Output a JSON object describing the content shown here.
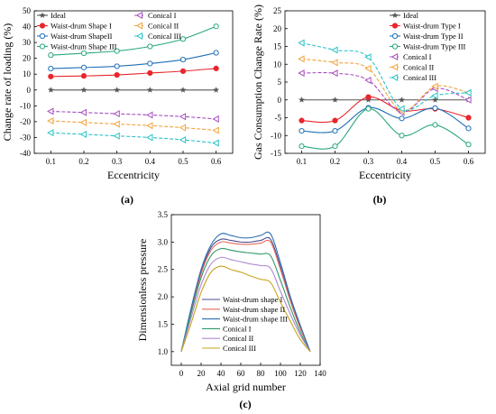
{
  "chart_data": [
    {
      "id": "a",
      "type": "line",
      "panel_label": "(a)",
      "xlabel": "Eccentricity",
      "ylabel": "Change rate of loading (%)",
      "x": [
        0.1,
        0.2,
        0.3,
        0.4,
        0.5,
        0.6
      ],
      "xlim": [
        0.05,
        0.65
      ],
      "ylim": [
        -40,
        50
      ],
      "yticks": [
        -40,
        -30,
        -20,
        -10,
        0,
        10,
        20,
        30,
        40,
        50
      ],
      "xticks": [
        0.1,
        0.2,
        0.3,
        0.4,
        0.5,
        0.6
      ],
      "legend_position": "top-left",
      "series": [
        {
          "name": "Ideal",
          "color": "#555555",
          "marker": "star",
          "dash": false,
          "values": [
            0,
            0,
            0,
            0,
            0,
            0
          ]
        },
        {
          "name": "Waist-drum Shape I",
          "color": "#e8262c",
          "marker": "circle-filled",
          "dash": false,
          "values": [
            8.5,
            8.9,
            9.5,
            10.7,
            11.9,
            13.6
          ]
        },
        {
          "name": "Waist-drum ShapeII",
          "color": "#1f6fb6",
          "marker": "circle-open",
          "dash": false,
          "values": [
            13.5,
            14.2,
            15.0,
            16.7,
            19.2,
            23.5
          ]
        },
        {
          "name": "Waist-drum Shape III",
          "color": "#2aa87e",
          "marker": "circle-open",
          "dash": false,
          "values": [
            22.0,
            23.2,
            24.6,
            27.5,
            32.2,
            40.2
          ]
        },
        {
          "name": "Conical I",
          "color": "#a64fbf",
          "marker": "tri-left",
          "dash": true,
          "values": [
            -13.5,
            -14.2,
            -15.0,
            -15.8,
            -16.8,
            -18.3
          ]
        },
        {
          "name": "Conical II",
          "color": "#f1a33b",
          "marker": "tri-left",
          "dash": true,
          "values": [
            -19.5,
            -20.5,
            -21.5,
            -22.5,
            -23.8,
            -25.5
          ]
        },
        {
          "name": "Conical III",
          "color": "#2ac2c7",
          "marker": "tri-left",
          "dash": true,
          "values": [
            -27.0,
            -28.0,
            -29.0,
            -30.0,
            -31.5,
            -33.5
          ]
        }
      ]
    },
    {
      "id": "b",
      "type": "line",
      "panel_label": "(b)",
      "xlabel": "Eccentricity",
      "ylabel": "Gas Consumption Change Rate (%)",
      "x": [
        0.1,
        0.2,
        0.3,
        0.4,
        0.5,
        0.6
      ],
      "xlim": [
        0.05,
        0.65
      ],
      "ylim": [
        -15,
        25
      ],
      "yticks": [
        -15,
        -10,
        -5,
        0,
        5,
        10,
        15,
        20,
        25
      ],
      "xticks": [
        0.1,
        0.2,
        0.3,
        0.4,
        0.5,
        0.6
      ],
      "legend_position": "top-right",
      "series": [
        {
          "name": "Ideal",
          "color": "#555555",
          "marker": "star",
          "dash": false,
          "values": [
            0,
            0,
            0,
            0,
            0,
            0
          ]
        },
        {
          "name": "Waist-drum Type I",
          "color": "#e8262c",
          "marker": "circle-filled",
          "dash": false,
          "values": [
            -5.8,
            -5.8,
            0.8,
            -3.0,
            -2.5,
            -5.0
          ]
        },
        {
          "name": "Waist-drum Type II",
          "color": "#1f6fb6",
          "marker": "circle-open",
          "dash": false,
          "values": [
            -8.7,
            -8.7,
            -2.2,
            -5.2,
            -2.3,
            -8.0
          ]
        },
        {
          "name": "Waist-drum Type III",
          "color": "#2aa87e",
          "marker": "circle-open",
          "dash": false,
          "values": [
            -13.0,
            -13.0,
            -2.5,
            -10.0,
            -7.0,
            -12.5
          ]
        },
        {
          "name": "Conical I",
          "color": "#a64fbf",
          "marker": "tri-left",
          "dash": true,
          "values": [
            7.5,
            7.5,
            5.5,
            -3.5,
            3.2,
            0.0
          ]
        },
        {
          "name": "Conical II",
          "color": "#f1a33b",
          "marker": "tri-left",
          "dash": true,
          "values": [
            11.5,
            10.5,
            8.8,
            -3.0,
            3.8,
            2.0
          ]
        },
        {
          "name": "Conical III",
          "color": "#2ac2c7",
          "marker": "tri-left",
          "dash": true,
          "values": [
            16.0,
            14.0,
            12.0,
            -2.5,
            1.2,
            2.0
          ]
        }
      ]
    },
    {
      "id": "c",
      "type": "line",
      "panel_label": "(c)",
      "xlabel": "Axial grid number",
      "ylabel": "Dimensionless pressure",
      "xlim": [
        -10,
        140
      ],
      "ylim": [
        0.75,
        3.5
      ],
      "xticks": [
        0,
        20,
        40,
        60,
        80,
        100,
        120,
        140
      ],
      "yticks": [
        1.0,
        1.5,
        2.0,
        2.5,
        3.0,
        3.5
      ],
      "legend_position": "bottom-right",
      "series": [
        {
          "name": "Waist-drum shape I",
          "color": "#4a4f8c",
          "x": [
            0,
            10,
            20,
            30,
            40,
            50,
            60,
            70,
            80,
            90,
            100,
            110,
            120,
            130
          ],
          "values": [
            1.0,
            1.75,
            2.45,
            2.9,
            3.05,
            3.03,
            3.0,
            3.0,
            3.03,
            3.05,
            2.55,
            1.95,
            1.45,
            1.0
          ]
        },
        {
          "name": "Waist-drum shape II",
          "color": "#e86a5c",
          "x": [
            0,
            10,
            20,
            30,
            40,
            50,
            60,
            70,
            80,
            90,
            100,
            110,
            120,
            130
          ],
          "values": [
            1.0,
            1.72,
            2.42,
            2.85,
            3.0,
            2.98,
            2.96,
            2.96,
            2.98,
            3.0,
            2.5,
            1.92,
            1.42,
            1.0
          ]
        },
        {
          "name": "Waist-drum shape III",
          "color": "#2f70b4",
          "x": [
            0,
            10,
            20,
            30,
            40,
            50,
            60,
            70,
            80,
            90,
            100,
            110,
            120,
            130
          ],
          "values": [
            1.0,
            1.8,
            2.5,
            2.95,
            3.15,
            3.12,
            3.08,
            3.08,
            3.12,
            3.15,
            2.62,
            2.0,
            1.48,
            1.0
          ]
        },
        {
          "name": "Conical I",
          "color": "#2f9a6a",
          "x": [
            0,
            10,
            20,
            30,
            40,
            50,
            60,
            70,
            80,
            90,
            100,
            110,
            120,
            130
          ],
          "values": [
            1.0,
            1.7,
            2.35,
            2.75,
            2.88,
            2.85,
            2.82,
            2.8,
            2.78,
            2.75,
            2.3,
            1.8,
            1.35,
            1.0
          ]
        },
        {
          "name": "Conical II",
          "color": "#b08ad0",
          "x": [
            0,
            10,
            20,
            30,
            40,
            50,
            60,
            70,
            80,
            90,
            100,
            110,
            120,
            130
          ],
          "values": [
            1.0,
            1.62,
            2.22,
            2.6,
            2.72,
            2.68,
            2.64,
            2.6,
            2.57,
            2.52,
            2.1,
            1.68,
            1.3,
            1.0
          ]
        },
        {
          "name": "Conical III",
          "color": "#c9a31a",
          "x": [
            0,
            10,
            20,
            30,
            40,
            50,
            60,
            70,
            80,
            90,
            100,
            110,
            120,
            130
          ],
          "values": [
            1.0,
            1.52,
            2.08,
            2.45,
            2.56,
            2.5,
            2.45,
            2.38,
            2.32,
            2.26,
            1.9,
            1.55,
            1.22,
            1.0
          ]
        }
      ]
    }
  ]
}
